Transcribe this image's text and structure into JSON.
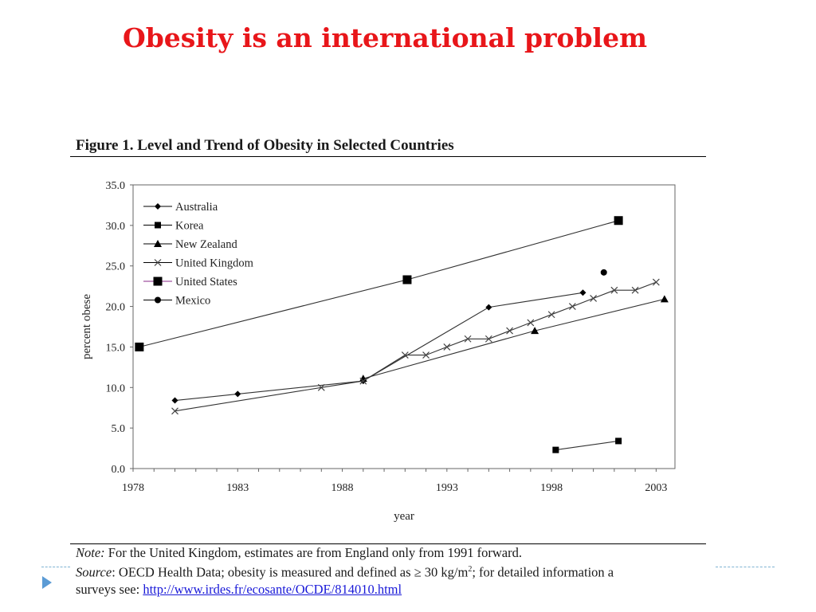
{
  "slide": {
    "title": "Obesity is an international problem"
  },
  "figure": {
    "title": "Figure 1. Level and Trend of Obesity in Selected Countries"
  },
  "notes": {
    "note_label": "Note:",
    "note_text": " For the United Kingdom, estimates are from England only from 1991 forward.",
    "source_label": "Source",
    "source_text_1": ": OECD Health Data; obesity is measured and defined as ≥ 30 kg/m",
    "source_sup": "2",
    "source_text_2": "; for detailed information a",
    "surveys_prefix": "surveys see: ",
    "link": "http://www.irdes.fr/ecosante/OCDE/814010.html"
  },
  "colors": {
    "title": "#e8161a",
    "series_line": "#333333",
    "link": "#1a1ad8",
    "bullet": "#5b9bd5"
  },
  "icons": {
    "bullet": "triangle-right-icon"
  },
  "chart_data": {
    "type": "line",
    "xlabel": "year",
    "ylabel": "percent obese",
    "xlim": [
      1978,
      2003.9
    ],
    "ylim": [
      0,
      35
    ],
    "x_ticks": [
      "1978",
      "1983",
      "1988",
      "1993",
      "1998",
      "2003"
    ],
    "y_ticks": [
      "0.0",
      "5.0",
      "10.0",
      "15.0",
      "20.0",
      "25.0",
      "30.0",
      "35.0"
    ],
    "legend_position": "top-left",
    "series": [
      {
        "name": "Australia",
        "marker": "diamond",
        "line": "#333333",
        "points": [
          [
            1980,
            8.4
          ],
          [
            1983,
            9.2
          ],
          [
            1989,
            10.8
          ],
          [
            1995,
            19.9
          ],
          [
            1999.5,
            21.7
          ]
        ]
      },
      {
        "name": "Korea",
        "marker": "square",
        "line": "#333333",
        "points": [
          [
            1998.2,
            2.3
          ],
          [
            2001.2,
            3.4
          ]
        ]
      },
      {
        "name": "New Zealand",
        "marker": "triangle",
        "line": "#333333",
        "points": [
          [
            1989,
            11.1
          ],
          [
            1997.2,
            17.0
          ],
          [
            2003.4,
            20.9
          ]
        ]
      },
      {
        "name": "United Kingdom",
        "marker": "x",
        "line": "#333333",
        "points": [
          [
            1980,
            7.1
          ],
          [
            1987,
            10.0
          ],
          [
            1989,
            10.8
          ],
          [
            1991,
            14.0
          ],
          [
            1992,
            14.0
          ],
          [
            1993,
            15.0
          ],
          [
            1994,
            16.0
          ],
          [
            1995,
            16.0
          ],
          [
            1996,
            17.0
          ],
          [
            1997,
            18.0
          ],
          [
            1998,
            19.0
          ],
          [
            1999,
            20.0
          ],
          [
            2000,
            21.0
          ],
          [
            2001,
            22.0
          ],
          [
            2002,
            22.0
          ],
          [
            2003,
            23.0
          ]
        ]
      },
      {
        "name": "United States",
        "marker": "square-large",
        "line": "#333333",
        "points": [
          [
            1978.3,
            15.0
          ],
          [
            1991.1,
            23.3
          ],
          [
            2001.2,
            30.6
          ]
        ]
      },
      {
        "name": "Mexico",
        "marker": "circle",
        "line": "#333333",
        "points": [
          [
            2000.5,
            24.2
          ]
        ]
      }
    ]
  }
}
